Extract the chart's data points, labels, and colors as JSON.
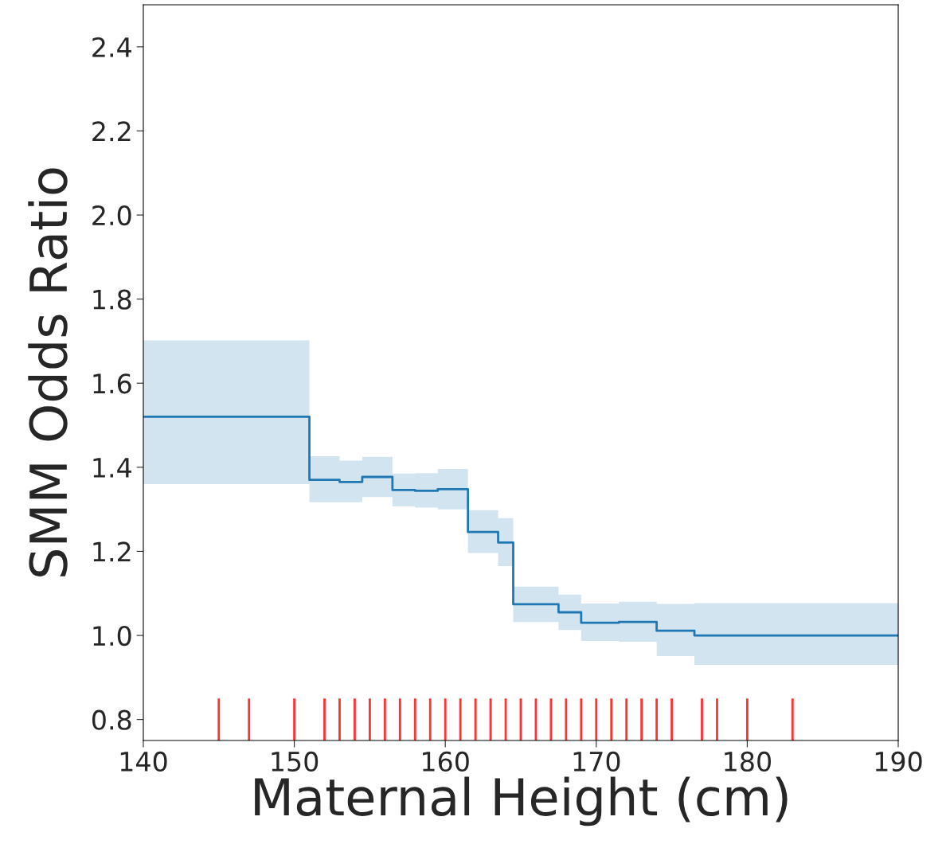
{
  "chart_data": {
    "type": "step",
    "xlabel": "Maternal Height (cm)",
    "ylabel": "SMM Odds Ratio",
    "xlim": [
      140,
      190
    ],
    "ylim": [
      0.75,
      2.5
    ],
    "xticks": [
      140,
      150,
      160,
      170,
      180,
      190
    ],
    "yticks": [
      {
        "value": 0.8,
        "label": "0.8"
      },
      {
        "value": 1.0,
        "label": "1.0"
      },
      {
        "value": 1.2,
        "label": "1.2"
      },
      {
        "value": 1.4,
        "label": "1.4"
      },
      {
        "value": 1.6,
        "label": "1.6"
      },
      {
        "value": 1.8,
        "label": "1.8"
      },
      {
        "value": 2.0,
        "label": "2.0"
      },
      {
        "value": 2.2,
        "label": "2.2"
      },
      {
        "value": 2.4,
        "label": "2.4"
      }
    ],
    "grid": false,
    "legend": false,
    "series": [
      {
        "color": "#1f77b4",
        "x": [
          140,
          151,
          153,
          154.5,
          156.5,
          158,
          159.5,
          161.5,
          163.5,
          164.5,
          167.5,
          169,
          171.5,
          174,
          176.5,
          190
        ],
        "values": [
          1.52,
          1.37,
          1.365,
          1.377,
          1.346,
          1.344,
          1.348,
          1.246,
          1.221,
          1.074,
          1.055,
          1.03,
          1.032,
          1.011,
          1.0,
          1.0
        ],
        "lower": [
          1.36,
          1.317,
          1.317,
          1.329,
          1.307,
          1.304,
          1.3,
          1.196,
          1.165,
          1.032,
          1.013,
          0.987,
          0.985,
          0.951,
          0.93,
          0.93
        ],
        "upper": [
          1.702,
          1.426,
          1.416,
          1.425,
          1.385,
          1.386,
          1.396,
          1.298,
          1.279,
          1.116,
          1.097,
          1.076,
          1.08,
          1.075,
          1.077,
          1.077
        ]
      },
      {
        "type": "bar",
        "color": "#ff0000",
        "x": [
          145,
          147,
          150,
          152,
          153,
          154,
          155,
          156,
          157,
          158,
          159,
          160,
          161,
          162,
          163,
          164,
          165,
          166,
          167,
          168,
          169,
          170,
          171,
          172,
          173,
          174,
          175,
          177,
          178,
          180,
          183
        ],
        "values": [
          0.85,
          0.85,
          0.85,
          0.85,
          0.85,
          0.85,
          0.85,
          0.85,
          0.85,
          0.85,
          0.85,
          0.85,
          0.85,
          0.85,
          0.85,
          0.85,
          0.85,
          0.85,
          0.85,
          0.85,
          0.85,
          0.85,
          0.85,
          0.85,
          0.85,
          0.85,
          0.85,
          0.85,
          0.85,
          0.85,
          0.85
        ]
      }
    ]
  }
}
